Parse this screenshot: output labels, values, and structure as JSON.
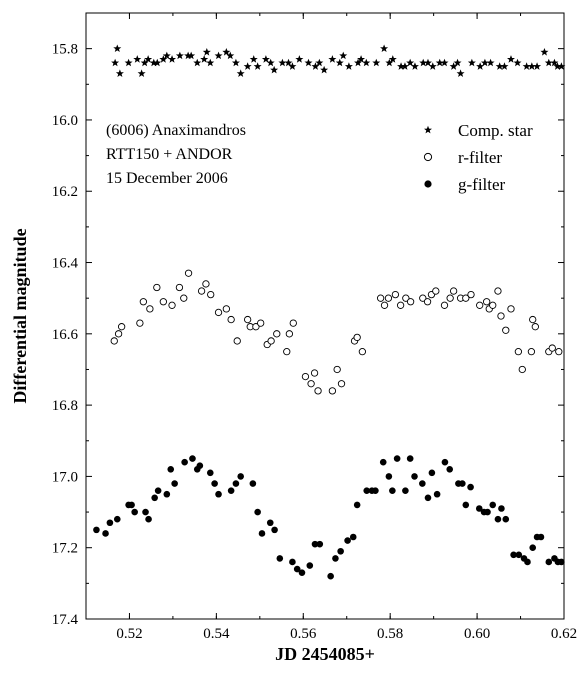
{
  "chart_data": {
    "type": "scatter",
    "xlabel": "JD 2454085+",
    "ylabel": "Differential magnitude",
    "xlim": [
      0.51,
      0.62
    ],
    "ylim": [
      15.7,
      17.4
    ],
    "y_inverted": true,
    "grid": false,
    "legend_position": "top-right",
    "x_ticks": [
      "0.52",
      "0.54",
      "0.56",
      "0.58",
      "0.60",
      "0.62"
    ],
    "y_ticks": [
      "15.8",
      "16.0",
      "16.2",
      "16.4",
      "16.6",
      "16.8",
      "17.0",
      "17.2",
      "17.4"
    ],
    "annotation": [
      "(6006) Anaximandros",
      "RTT150 + ANDOR",
      "15 December 2006"
    ],
    "series": [
      {
        "name": "Comp. star",
        "marker": "star",
        "x": [
          0.5167,
          0.5172,
          0.5178,
          0.5198,
          0.5218,
          0.5228,
          0.5235,
          0.5243,
          0.5256,
          0.5264,
          0.5278,
          0.5286,
          0.5298,
          0.5316,
          0.5335,
          0.5342,
          0.5356,
          0.5372,
          0.5378,
          0.5386,
          0.5405,
          0.5423,
          0.5432,
          0.5445,
          0.5456,
          0.5472,
          0.5486,
          0.5495,
          0.5514,
          0.5525,
          0.5533,
          0.5552,
          0.5566,
          0.5575,
          0.5591,
          0.5612,
          0.5628,
          0.5637,
          0.5648,
          0.5667,
          0.5684,
          0.5692,
          0.5705,
          0.5726,
          0.5733,
          0.5745,
          0.5768,
          0.5786,
          0.5798,
          0.5806,
          0.5825,
          0.5834,
          0.5846,
          0.5857,
          0.5876,
          0.5887,
          0.5898,
          0.5914,
          0.5925,
          0.5946,
          0.5955,
          0.5962,
          0.5988,
          0.6007,
          0.6018,
          0.6031,
          0.6052,
          0.6063,
          0.6078,
          0.6093,
          0.6114,
          0.6126,
          0.6138,
          0.6155,
          0.6165,
          0.6178,
          0.6185,
          0.6194,
          0.6205
        ],
        "y": [
          15.84,
          15.8,
          15.87,
          15.84,
          15.83,
          15.87,
          15.84,
          15.83,
          15.84,
          15.84,
          15.83,
          15.82,
          15.83,
          15.82,
          15.82,
          15.82,
          15.84,
          15.83,
          15.81,
          15.84,
          15.82,
          15.81,
          15.82,
          15.84,
          15.87,
          15.85,
          15.83,
          15.85,
          15.83,
          15.84,
          15.86,
          15.84,
          15.84,
          15.85,
          15.83,
          15.84,
          15.85,
          15.84,
          15.86,
          15.83,
          15.84,
          15.82,
          15.85,
          15.84,
          15.83,
          15.84,
          15.84,
          15.8,
          15.84,
          15.83,
          15.85,
          15.85,
          15.84,
          15.85,
          15.84,
          15.84,
          15.85,
          15.84,
          15.84,
          15.85,
          15.84,
          15.87,
          15.84,
          15.85,
          15.84,
          15.84,
          15.85,
          15.85,
          15.83,
          15.84,
          15.85,
          15.85,
          15.85,
          15.81,
          15.84,
          15.84,
          15.85,
          15.85,
          15.86
        ]
      },
      {
        "name": "r-filter",
        "marker": "open-circle",
        "x": [
          0.5165,
          0.5175,
          0.5182,
          0.5224,
          0.5232,
          0.5247,
          0.5263,
          0.5278,
          0.5298,
          0.5315,
          0.5325,
          0.5336,
          0.5366,
          0.5376,
          0.5387,
          0.5405,
          0.5423,
          0.5434,
          0.5448,
          0.5472,
          0.5478,
          0.5491,
          0.5502,
          0.5517,
          0.5526,
          0.5539,
          0.5562,
          0.5568,
          0.5577,
          0.5605,
          0.5618,
          0.5626,
          0.5634,
          0.5667,
          0.5678,
          0.5688,
          0.5718,
          0.5724,
          0.5736,
          0.5778,
          0.5787,
          0.5796,
          0.5812,
          0.5824,
          0.5836,
          0.5847,
          0.5875,
          0.5886,
          0.5895,
          0.5905,
          0.5925,
          0.5938,
          0.5946,
          0.5962,
          0.5974,
          0.5986,
          0.6006,
          0.6022,
          0.6028,
          0.6036,
          0.6048,
          0.6055,
          0.6066,
          0.6078,
          0.6095,
          0.6104,
          0.6125,
          0.6128,
          0.6134,
          0.6165,
          0.6173,
          0.6188
        ],
        "y": [
          16.62,
          16.6,
          16.58,
          16.57,
          16.51,
          16.53,
          16.47,
          16.51,
          16.52,
          16.47,
          16.5,
          16.43,
          16.48,
          16.46,
          16.49,
          16.54,
          16.53,
          16.56,
          16.62,
          16.56,
          16.58,
          16.58,
          16.57,
          16.63,
          16.62,
          16.6,
          16.65,
          16.6,
          16.57,
          16.72,
          16.74,
          16.71,
          16.76,
          16.76,
          16.7,
          16.74,
          16.62,
          16.61,
          16.65,
          16.5,
          16.52,
          16.5,
          16.49,
          16.52,
          16.5,
          16.51,
          16.5,
          16.51,
          16.49,
          16.48,
          16.52,
          16.5,
          16.48,
          16.5,
          16.5,
          16.49,
          16.52,
          16.51,
          16.53,
          16.52,
          16.48,
          16.55,
          16.59,
          16.53,
          16.65,
          16.7,
          16.65,
          16.56,
          16.58,
          16.65,
          16.64,
          16.65
        ]
      },
      {
        "name": "g-filter",
        "marker": "filled-circle",
        "x": [
          0.5124,
          0.5145,
          0.5155,
          0.5172,
          0.5198,
          0.5205,
          0.5212,
          0.5237,
          0.5244,
          0.5258,
          0.5266,
          0.5286,
          0.5295,
          0.5304,
          0.5327,
          0.5345,
          0.5356,
          0.5362,
          0.5386,
          0.5396,
          0.5405,
          0.5434,
          0.5445,
          0.5456,
          0.5484,
          0.5495,
          0.5505,
          0.5524,
          0.5534,
          0.5546,
          0.5575,
          0.5586,
          0.5597,
          0.5615,
          0.5627,
          0.5638,
          0.5663,
          0.5674,
          0.5686,
          0.5702,
          0.5715,
          0.5724,
          0.5746,
          0.5758,
          0.5766,
          0.5784,
          0.5797,
          0.5805,
          0.5816,
          0.5835,
          0.5846,
          0.5856,
          0.5874,
          0.5887,
          0.5896,
          0.5908,
          0.5926,
          0.5937,
          0.5957,
          0.5966,
          0.5974,
          0.5985,
          0.6005,
          0.6016,
          0.6024,
          0.6036,
          0.6048,
          0.6056,
          0.6066,
          0.6084,
          0.6096,
          0.6108,
          0.6116,
          0.6128,
          0.6138,
          0.6147,
          0.6165,
          0.6178,
          0.6186,
          0.6194
        ],
        "y": [
          17.15,
          17.16,
          17.13,
          17.12,
          17.08,
          17.08,
          17.1,
          17.1,
          17.12,
          17.06,
          17.04,
          17.05,
          16.98,
          17.02,
          16.96,
          16.95,
          16.98,
          16.97,
          16.99,
          17.02,
          17.05,
          17.04,
          17.02,
          17.0,
          17.02,
          17.1,
          17.16,
          17.13,
          17.15,
          17.23,
          17.24,
          17.26,
          17.27,
          17.25,
          17.19,
          17.19,
          17.28,
          17.23,
          17.21,
          17.18,
          17.17,
          17.08,
          17.04,
          17.04,
          17.04,
          16.96,
          17.0,
          17.04,
          16.95,
          17.04,
          16.95,
          17.0,
          17.02,
          17.06,
          16.99,
          17.05,
          16.96,
          16.98,
          17.02,
          17.02,
          17.08,
          17.03,
          17.09,
          17.1,
          17.1,
          17.08,
          17.12,
          17.09,
          17.12,
          17.22,
          17.22,
          17.23,
          17.24,
          17.2,
          17.17,
          17.17,
          17.24,
          17.23,
          17.24,
          17.24
        ]
      }
    ]
  }
}
